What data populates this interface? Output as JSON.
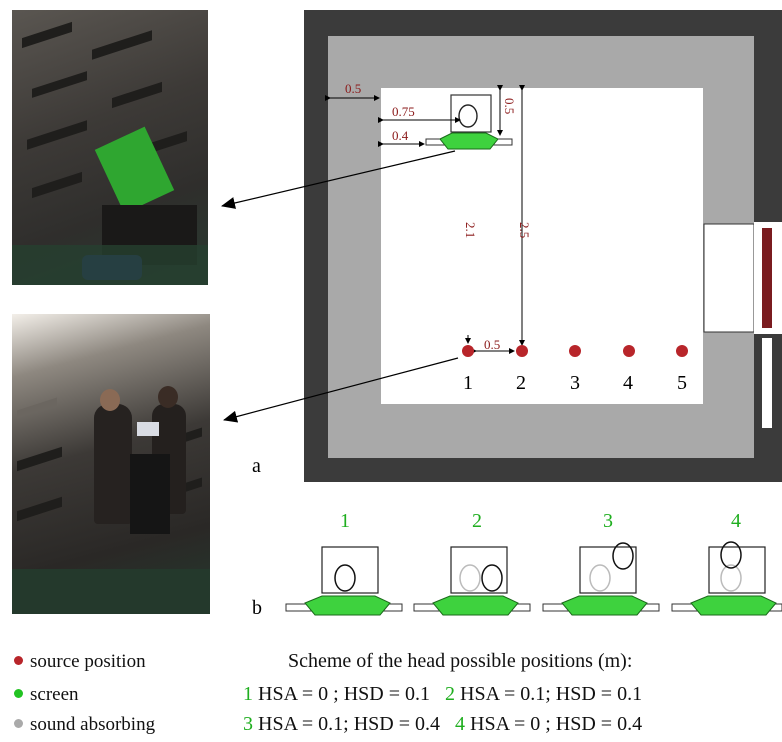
{
  "plan": {
    "panel_label": "a",
    "dim_wall_gap": "0.5",
    "dim_screen_offset": "0.75",
    "dim_screen_edge": "0.4",
    "dim_top_gap": "0.5",
    "dim_vertical_1": "2.1",
    "dim_vertical_2": "2.5",
    "dim_source_gap": "0.5",
    "positions": [
      "1",
      "2",
      "3",
      "4",
      "5"
    ]
  },
  "head_scheme": {
    "panel_label": "b",
    "numbers": [
      "1",
      "2",
      "3",
      "4"
    ]
  },
  "legend": [
    {
      "label": "source position",
      "color": "#b8252a"
    },
    {
      "label": "screen",
      "color": "#22c322"
    },
    {
      "label": "sound absorbing",
      "color": "#aaaaaa"
    }
  ],
  "caption": "Scheme of the head possible positions (m):",
  "scheme_lines": [
    {
      "n1": "1",
      "t1": "HSA = 0   ; HSD = 0.1",
      "n2": "2",
      "t2": "HSA = 0.1; HSD = 0.1"
    },
    {
      "n1": "3",
      "t1": "HSA = 0.1; HSD = 0.4",
      "n2": "4",
      "t2": "HSA = 0   ; HSD = 0.4"
    }
  ],
  "colors": {
    "source": "#b8252a",
    "screen": "#22c322",
    "absorber": "#a9a9a9",
    "wall": "#3b3b3b",
    "dim": "#8b1a1a"
  }
}
